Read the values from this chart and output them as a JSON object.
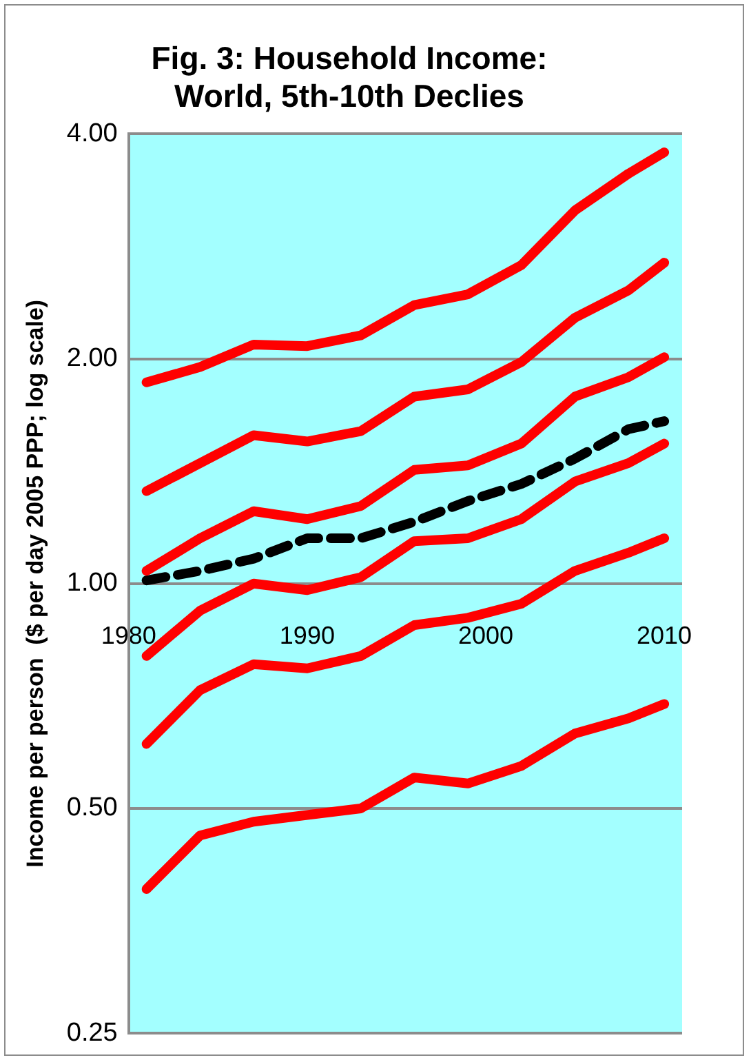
{
  "chart_data": {
    "type": "line",
    "title": "Fig. 3: Household Income: World, 5th-10th Declies",
    "ylabel": "Income per person  ($ per day 2005 PPP; log scale)",
    "x": [
      1981,
      1984,
      1987,
      1990,
      1993,
      1996,
      1999,
      2002,
      2005,
      2008,
      2010
    ],
    "xlim": [
      1980,
      2011
    ],
    "xticks": [
      1980,
      1990,
      2000,
      2010
    ],
    "log": "y",
    "ylim": [
      0.25,
      4
    ],
    "yticks": [
      0.25,
      {
        "value": 0.5,
        "label": "0.50"
      },
      {
        "value": 1,
        "label": "1.00"
      },
      {
        "value": 2,
        "label": "2.00"
      },
      {
        "value": 4,
        "label": "4.00"
      }
    ],
    "grid": "y",
    "legend": false,
    "marker": "none",
    "series": [
      {
        "color": "#ff0000",
        "values": [
          1.86,
          1.95,
          2.09,
          2.08,
          2.15,
          2.36,
          2.44,
          2.67,
          3.16,
          3.54,
          3.78
        ]
      },
      {
        "color": "#ff0000",
        "values": [
          1.33,
          1.45,
          1.58,
          1.55,
          1.6,
          1.78,
          1.82,
          1.98,
          2.27,
          2.47,
          2.69
        ]
      },
      {
        "color": "#ff0000",
        "values": [
          1.04,
          1.15,
          1.25,
          1.22,
          1.27,
          1.42,
          1.44,
          1.54,
          1.78,
          1.89,
          2.01
        ]
      },
      {
        "color": "#000000",
        "line_style": "dashed",
        "values": [
          1.01,
          1.04,
          1.08,
          1.15,
          1.15,
          1.21,
          1.29,
          1.36,
          1.47,
          1.61,
          1.65
        ]
      },
      {
        "color": "#ff0000",
        "values": [
          0.8,
          0.92,
          1.0,
          0.98,
          1.02,
          1.14,
          1.15,
          1.22,
          1.37,
          1.45,
          1.54
        ]
      },
      {
        "color": "#ff0000",
        "values": [
          0.61,
          0.72,
          0.78,
          0.77,
          0.8,
          0.88,
          0.9,
          0.94,
          1.04,
          1.1,
          1.15
        ]
      },
      {
        "color": "#ff0000",
        "values": [
          0.39,
          0.46,
          0.48,
          0.49,
          0.5,
          0.55,
          0.54,
          0.57,
          0.63,
          0.66,
          0.69
        ]
      }
    ]
  }
}
